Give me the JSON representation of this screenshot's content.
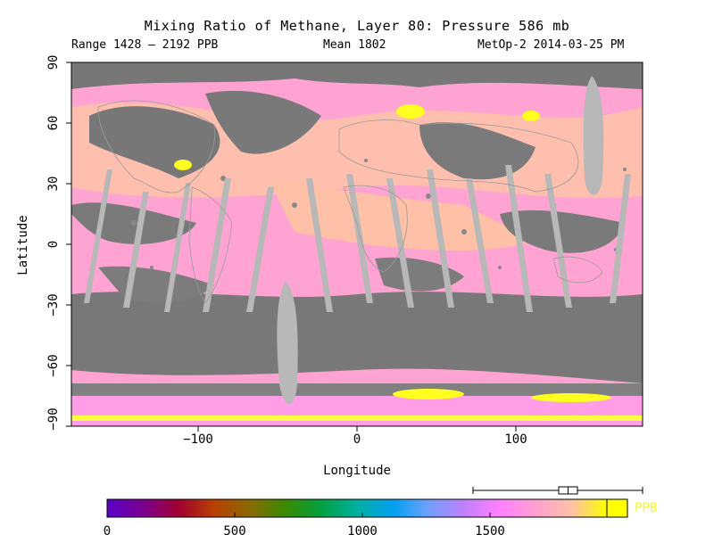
{
  "header": {
    "title": "Mixing Ratio of Methane, Layer 80: Pressure 586 mb",
    "range": "Range 1428 – 2192 PPB",
    "mean": "Mean 1802",
    "satellite": "MetOp-2 2014-03-25 PM"
  },
  "axes": {
    "xlabel": "Longitude",
    "ylabel": "Latitude",
    "x_ticks": [
      "−100",
      "0",
      "100"
    ],
    "y_ticks": [
      "90",
      "60",
      "30",
      "0",
      "−30",
      "−60",
      "−90"
    ]
  },
  "colorbar": {
    "unit": "PPB",
    "labels": [
      "0",
      "500",
      "1000",
      "1500"
    ],
    "stops": [
      "#5a00c8",
      "#7a0090",
      "#a00030",
      "#b84000",
      "#8a6a00",
      "#3a8a00",
      "#00a040",
      "#00b0a0",
      "#00a0f0",
      "#70a0ff",
      "#c080ff",
      "#ff80ff",
      "#ffa0d0",
      "#ffc0a8",
      "#ffff00"
    ],
    "marker_box_range": [
      1760,
      1840
    ],
    "marker_whisker_range": [
      1428,
      2192
    ]
  },
  "map": {
    "land_color": "#767676",
    "swath_gap_color": "#b8b8b8",
    "data_colors": [
      "#ffa0d0",
      "#ffc0a8",
      "#ffff20"
    ]
  }
}
